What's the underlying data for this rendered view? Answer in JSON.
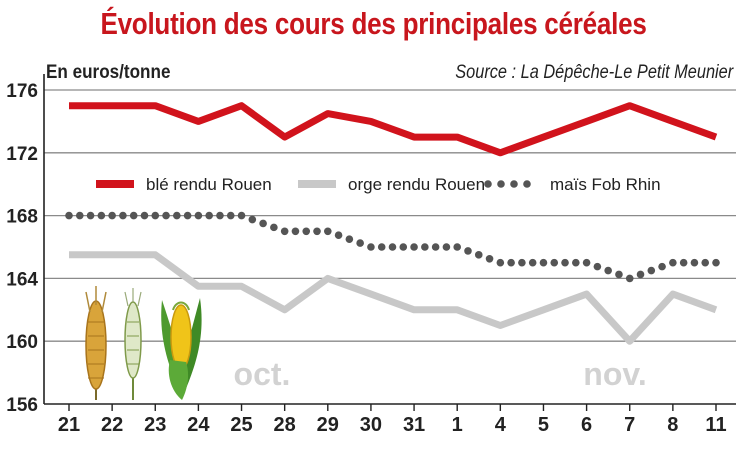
{
  "chart_data": {
    "type": "line",
    "title": "Évolution des cours des principales céréales",
    "ylabel": "En euros/tonne",
    "source": "Source : La Dépêche-Le Petit Meunier",
    "categories": [
      "21",
      "22",
      "23",
      "24",
      "25",
      "28",
      "29",
      "30",
      "31",
      "1",
      "4",
      "5",
      "6",
      "7",
      "8",
      "11"
    ],
    "month_labels": [
      "oct.",
      "nov."
    ],
    "ylim": [
      156,
      176
    ],
    "yticks": [
      156,
      160,
      164,
      168,
      172,
      176
    ],
    "grid": "horizontal",
    "legend_position": "top",
    "series": [
      {
        "name": "blé rendu Rouen",
        "color": "#d1131c",
        "style": "solid",
        "values": [
          175,
          175,
          175,
          174,
          175,
          173,
          174.5,
          174,
          173,
          173,
          172,
          173,
          174,
          175,
          174,
          173
        ]
      },
      {
        "name": "orge rendu Rouen",
        "color": "#c8c8c8",
        "style": "solid",
        "values": [
          165.5,
          165.5,
          165.5,
          163.5,
          163.5,
          162,
          164,
          163,
          162,
          162,
          161,
          162,
          163,
          160,
          163,
          162
        ]
      },
      {
        "name": "maïs Fob Rhin",
        "color": "#555555",
        "style": "dotted",
        "values": [
          168,
          168,
          168,
          168,
          168,
          167,
          167,
          166,
          166,
          166,
          165,
          165,
          165,
          164,
          165,
          165
        ]
      }
    ]
  }
}
